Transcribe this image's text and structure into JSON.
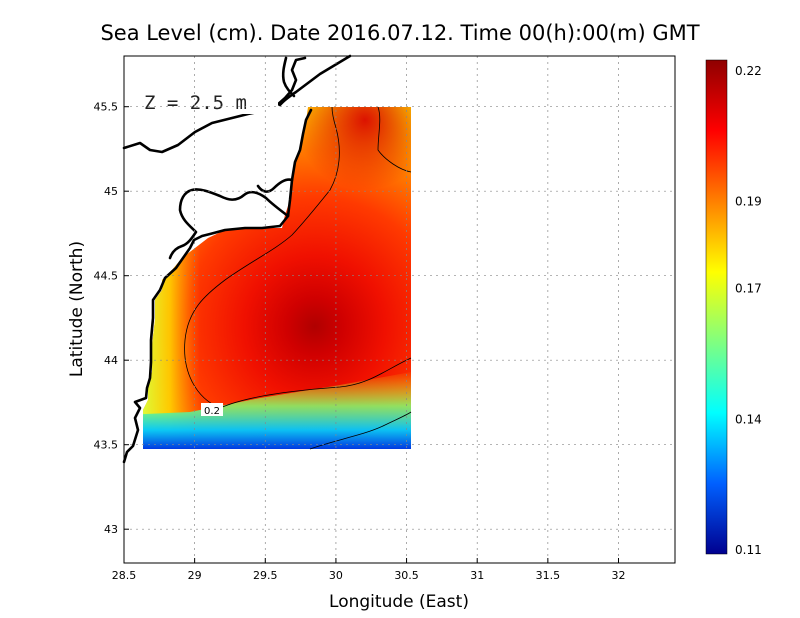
{
  "chart_data": {
    "type": "heatmap",
    "title": "Sea Level (cm). Date 2016.07.12. Time 00(h):00(m) GMT",
    "xlabel": "Longitude (East)",
    "ylabel": "Latitude (North)",
    "annotation": "Z = 2.5 m",
    "contour_label": "0.2",
    "xlim": [
      28.5,
      32.4
    ],
    "ylim": [
      42.8,
      45.8
    ],
    "xticks": [
      28.5,
      29,
      29.5,
      30,
      30.5,
      31,
      31.5,
      32
    ],
    "xtick_labels": [
      "28.5",
      "29",
      "29.5",
      "30",
      "30.5",
      "31",
      "31.5",
      "32"
    ],
    "yticks": [
      43,
      43.5,
      44,
      44.5,
      45,
      45.5
    ],
    "ytick_labels": [
      "43",
      "43.5",
      "44",
      "44.5",
      "45",
      "45.5"
    ],
    "grid": true,
    "colorbar": {
      "min": 0.11,
      "max": 0.22,
      "ticks": [
        0.11,
        0.14,
        0.17,
        0.19,
        0.22
      ],
      "tick_labels": [
        "0.11",
        "0.14",
        "0.17",
        "0.19",
        "0.22"
      ],
      "colors": [
        "#00008f",
        "#0060ff",
        "#00ffff",
        "#80ff80",
        "#ffff00",
        "#ff8000",
        "#ff0000",
        "#8f0000"
      ]
    },
    "field_extent": {
      "lon": [
        28.63,
        30.53
      ],
      "lat": [
        43.49,
        45.5
      ]
    },
    "field_max": {
      "lon": 29.85,
      "lat": 44.2,
      "value": 0.22
    }
  }
}
